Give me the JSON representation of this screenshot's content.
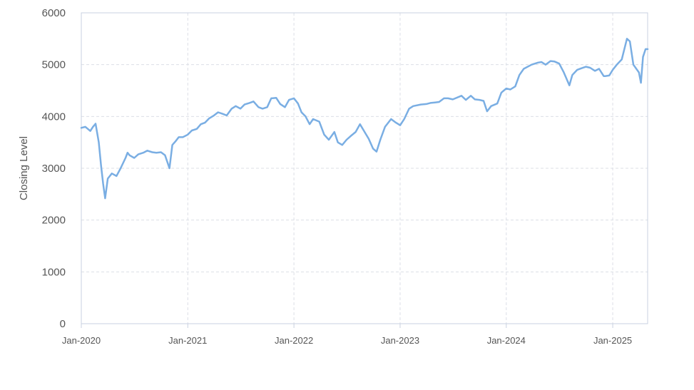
{
  "chart_data": {
    "type": "line",
    "title": "",
    "xlabel": "",
    "ylabel": "Closing Level",
    "ylim": [
      0,
      6000
    ],
    "y_ticks": [
      "0",
      "1000",
      "2000",
      "3000",
      "4000",
      "5000",
      "6000"
    ],
    "x_ticks": [
      "Jan-2020",
      "Jan-2021",
      "Jan-2022",
      "Jan-2023",
      "Jan-2024",
      "Jan-2025"
    ],
    "x_tick_dates": [
      "2020-01-01",
      "2021-01-01",
      "2022-01-01",
      "2023-01-01",
      "2024-01-01",
      "2025-01-01"
    ],
    "xlim": [
      "2020-01-01",
      "2025-05-01"
    ],
    "grid": true,
    "line_color": "#7aaee3",
    "series": [
      {
        "x": [
          "2020-01-01",
          "2020-01-15",
          "2020-02-01",
          "2020-02-10",
          "2020-02-19",
          "2020-03-01",
          "2020-03-09",
          "2020-03-16",
          "2020-03-23",
          "2020-04-01",
          "2020-04-15",
          "2020-05-01",
          "2020-05-15",
          "2020-06-01",
          "2020-06-08",
          "2020-06-15",
          "2020-07-01",
          "2020-07-15",
          "2020-08-01",
          "2020-08-15",
          "2020-09-01",
          "2020-09-15",
          "2020-10-01",
          "2020-10-15",
          "2020-10-30",
          "2020-11-09",
          "2020-11-20",
          "2020-12-01",
          "2020-12-15",
          "2021-01-01",
          "2021-01-15",
          "2021-02-01",
          "2021-02-15",
          "2021-03-01",
          "2021-03-15",
          "2021-04-01",
          "2021-04-15",
          "2021-05-01",
          "2021-05-15",
          "2021-06-01",
          "2021-06-15",
          "2021-07-01",
          "2021-07-15",
          "2021-08-01",
          "2021-08-15",
          "2021-09-01",
          "2021-09-15",
          "2021-10-01",
          "2021-10-15",
          "2021-11-01",
          "2021-11-15",
          "2021-12-01",
          "2021-12-15",
          "2022-01-01",
          "2022-01-15",
          "2022-01-27",
          "2022-02-10",
          "2022-02-24",
          "2022-03-08",
          "2022-03-29",
          "2022-04-15",
          "2022-05-01",
          "2022-05-20",
          "2022-06-01",
          "2022-06-16",
          "2022-07-01",
          "2022-07-15",
          "2022-08-01",
          "2022-08-16",
          "2022-09-01",
          "2022-09-15",
          "2022-09-30",
          "2022-10-12",
          "2022-10-25",
          "2022-11-10",
          "2022-12-01",
          "2022-12-15",
          "2023-01-01",
          "2023-01-15",
          "2023-02-01",
          "2023-02-15",
          "2023-03-13",
          "2023-04-01",
          "2023-04-15",
          "2023-05-01",
          "2023-05-15",
          "2023-06-01",
          "2023-06-15",
          "2023-07-01",
          "2023-07-31",
          "2023-08-15",
          "2023-09-01",
          "2023-09-15",
          "2023-10-01",
          "2023-10-15",
          "2023-10-27",
          "2023-11-10",
          "2023-12-01",
          "2023-12-15",
          "2024-01-01",
          "2024-01-15",
          "2024-02-01",
          "2024-02-15",
          "2024-03-01",
          "2024-03-28",
          "2024-04-19",
          "2024-05-01",
          "2024-05-15",
          "2024-06-01",
          "2024-06-15",
          "2024-07-01",
          "2024-07-16",
          "2024-08-05",
          "2024-08-15",
          "2024-09-01",
          "2024-09-15",
          "2024-10-01",
          "2024-10-15",
          "2024-11-01",
          "2024-11-15",
          "2024-12-01",
          "2024-12-06",
          "2024-12-20",
          "2025-01-01",
          "2025-01-15",
          "2025-02-01",
          "2025-02-19",
          "2025-03-01",
          "2025-03-13",
          "2025-04-01",
          "2025-04-08",
          "2025-04-15",
          "2025-04-24",
          "2025-05-01"
        ],
        "y": [
          3780,
          3800,
          3720,
          3800,
          3860,
          3500,
          3050,
          2700,
          2420,
          2800,
          2900,
          2850,
          3000,
          3200,
          3300,
          3250,
          3200,
          3270,
          3300,
          3340,
          3310,
          3300,
          3310,
          3250,
          3000,
          3450,
          3520,
          3600,
          3600,
          3650,
          3730,
          3760,
          3850,
          3880,
          3960,
          4020,
          4080,
          4050,
          4020,
          4150,
          4200,
          4150,
          4230,
          4260,
          4290,
          4180,
          4150,
          4180,
          4350,
          4360,
          4240,
          4180,
          4320,
          4350,
          4250,
          4080,
          4000,
          3850,
          3950,
          3900,
          3650,
          3550,
          3700,
          3500,
          3450,
          3550,
          3620,
          3700,
          3850,
          3700,
          3570,
          3380,
          3320,
          3550,
          3800,
          3950,
          3890,
          3830,
          3950,
          4150,
          4200,
          4230,
          4240,
          4260,
          4270,
          4280,
          4350,
          4350,
          4330,
          4400,
          4320,
          4400,
          4330,
          4320,
          4300,
          4100,
          4200,
          4250,
          4460,
          4540,
          4520,
          4580,
          4800,
          4920,
          5000,
          5040,
          5050,
          5000,
          5070,
          5060,
          5020,
          4860,
          4600,
          4800,
          4900,
          4930,
          4960,
          4940,
          4880,
          4920,
          4780,
          4780,
          4790,
          4900,
          5000,
          5100,
          5500,
          5450,
          5000,
          4850,
          4650,
          5150,
          5300,
          5300
        ]
      }
    ]
  }
}
